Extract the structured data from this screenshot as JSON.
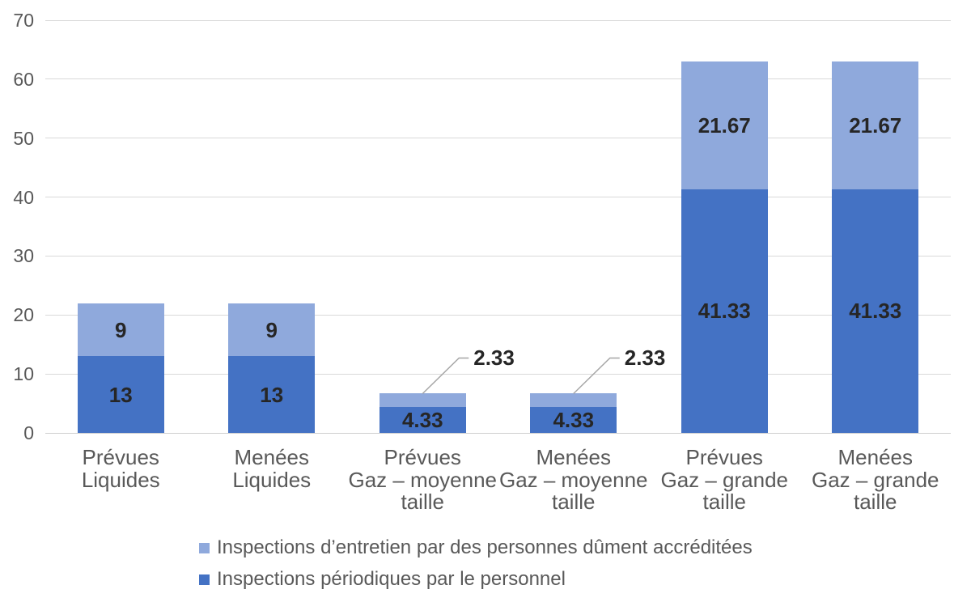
{
  "chart_data": {
    "type": "bar",
    "stacked": true,
    "title": "",
    "xlabel": "",
    "ylabel": "",
    "ylim": [
      0,
      70
    ],
    "yticks": [
      0,
      10,
      20,
      30,
      40,
      50,
      60,
      70
    ],
    "grid": true,
    "categories": [
      {
        "lines": [
          "Prévues",
          "Liquides"
        ]
      },
      {
        "lines": [
          "Menées",
          "Liquides"
        ]
      },
      {
        "lines": [
          "Prévues",
          "Gaz – moyenne",
          "taille"
        ]
      },
      {
        "lines": [
          "Menées",
          "Gaz – moyenne",
          "taille"
        ]
      },
      {
        "lines": [
          "Prévues",
          "Gaz – grande",
          "taille"
        ]
      },
      {
        "lines": [
          "Menées",
          "Gaz – grande",
          "taille"
        ]
      }
    ],
    "series": [
      {
        "name": "Inspections périodiques par le personnel",
        "color": "#4472C4",
        "values": [
          13,
          13,
          4.33,
          4.33,
          41.33,
          41.33
        ],
        "labels": [
          "13",
          "13",
          "4.33",
          "4.33",
          "41.33",
          "41.33"
        ]
      },
      {
        "name": "Inspections d’entretien par des personnes dûment accréditées",
        "color": "#8FA9DC",
        "values": [
          9,
          9,
          2.33,
          2.33,
          21.67,
          21.67
        ],
        "labels": [
          "9",
          "9",
          "2.33",
          "2.33",
          "21.67",
          "21.67"
        ]
      }
    ],
    "callouts": [
      {
        "series": 1,
        "category": 2,
        "label": "2.33"
      },
      {
        "series": 1,
        "category": 3,
        "label": "2.33"
      }
    ],
    "legend": {
      "position": "bottom-left",
      "items": [
        {
          "label": "Inspections d’entretien par des personnes dûment accréditées",
          "color": "#8FA9DC"
        },
        {
          "label": "Inspections périodiques par le personnel",
          "color": "#4472C4"
        }
      ]
    },
    "colors": {
      "value_label": "#262626",
      "axis_label": "#595959",
      "gridline": "#D9D9D9",
      "baseline": "#CFCFCF",
      "leader_line": "#A6A6A6",
      "background": "#FFFFFF"
    }
  }
}
